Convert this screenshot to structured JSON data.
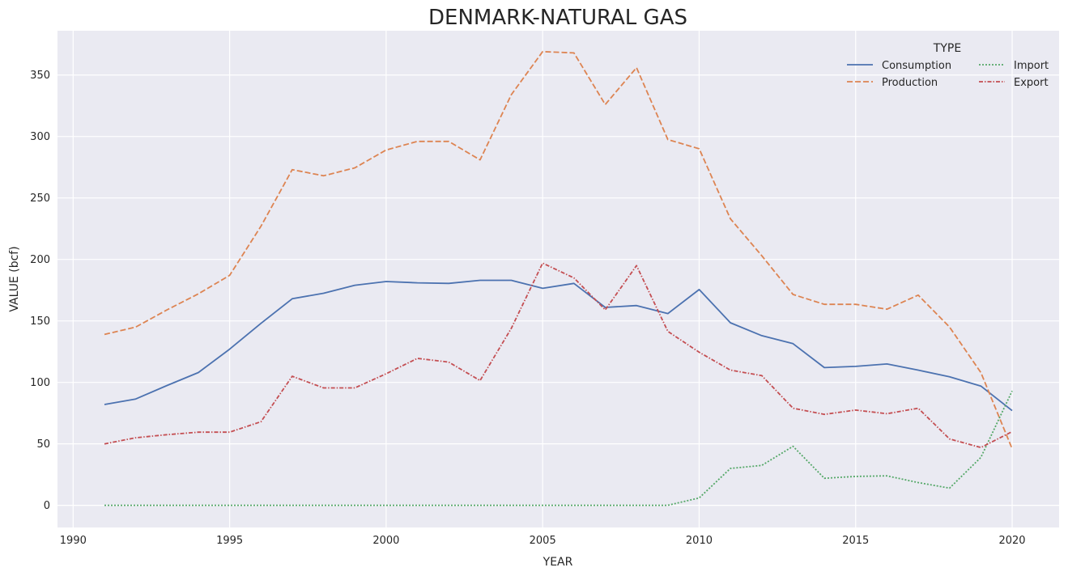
{
  "chart_data": {
    "type": "line",
    "title": "DENMARK-NATURAL GAS",
    "xlabel": "YEAR",
    "ylabel": "VALUE (bcf)",
    "xlim": [
      1989.5,
      2021.5
    ],
    "ylim": [
      -18,
      386
    ],
    "x_ticks": [
      "1990",
      "1995",
      "2000",
      "2005",
      "2010",
      "2015",
      "2020"
    ],
    "y_ticks": [
      "0",
      "50",
      "100",
      "150",
      "200",
      "250",
      "300",
      "350"
    ],
    "grid": true,
    "legend": {
      "title": "TYPE",
      "placement": "top-right",
      "columns": 2
    },
    "x": [
      1991,
      1992,
      1993,
      1994,
      1995,
      1996,
      1997,
      1998,
      1999,
      2000,
      2001,
      2002,
      2003,
      2004,
      2005,
      2006,
      2007,
      2008,
      2009,
      2010,
      2011,
      2012,
      2013,
      2014,
      2015,
      2016,
      2017,
      2018,
      2019,
      2020
    ],
    "series": [
      {
        "name": "Consumption",
        "color": "#4c72b0",
        "style": "solid",
        "values": [
          82,
          86.5,
          97.5,
          108,
          127,
          148,
          168,
          172.5,
          179,
          182,
          181,
          180.5,
          183,
          183,
          176.5,
          180.5,
          161,
          162.5,
          156,
          175.5,
          148.5,
          138,
          131.5,
          112,
          113,
          115,
          110,
          104.5,
          97,
          77
        ]
      },
      {
        "name": "Production",
        "color": "#dd8452",
        "style": "dashed",
        "values": [
          139,
          145,
          159,
          172,
          187,
          227,
          273,
          268,
          274.5,
          289,
          296,
          296,
          281,
          334,
          369,
          368,
          326,
          356,
          297.5,
          290,
          233,
          203,
          171.5,
          163.5,
          163.5,
          159.5,
          171,
          145,
          108,
          46
        ]
      },
      {
        "name": "Import",
        "color": "#55a868",
        "style": "dotted",
        "values": [
          0,
          0,
          0,
          0,
          0,
          0,
          0,
          0,
          0,
          0,
          0,
          0,
          0,
          0,
          0,
          0,
          0,
          0,
          0,
          6,
          30,
          32.5,
          48,
          22,
          23.5,
          24,
          18.5,
          14,
          39,
          93
        ]
      },
      {
        "name": "Export",
        "color": "#c44e52",
        "style": "dashdot",
        "values": [
          50,
          55,
          57.5,
          59.5,
          59.5,
          68,
          105,
          95.5,
          95.5,
          107,
          119.5,
          116.5,
          101.5,
          144,
          197,
          185,
          159,
          195,
          141.5,
          124.5,
          110,
          105.5,
          79,
          74,
          77.5,
          74.5,
          79,
          54,
          47,
          60
        ]
      }
    ]
  }
}
